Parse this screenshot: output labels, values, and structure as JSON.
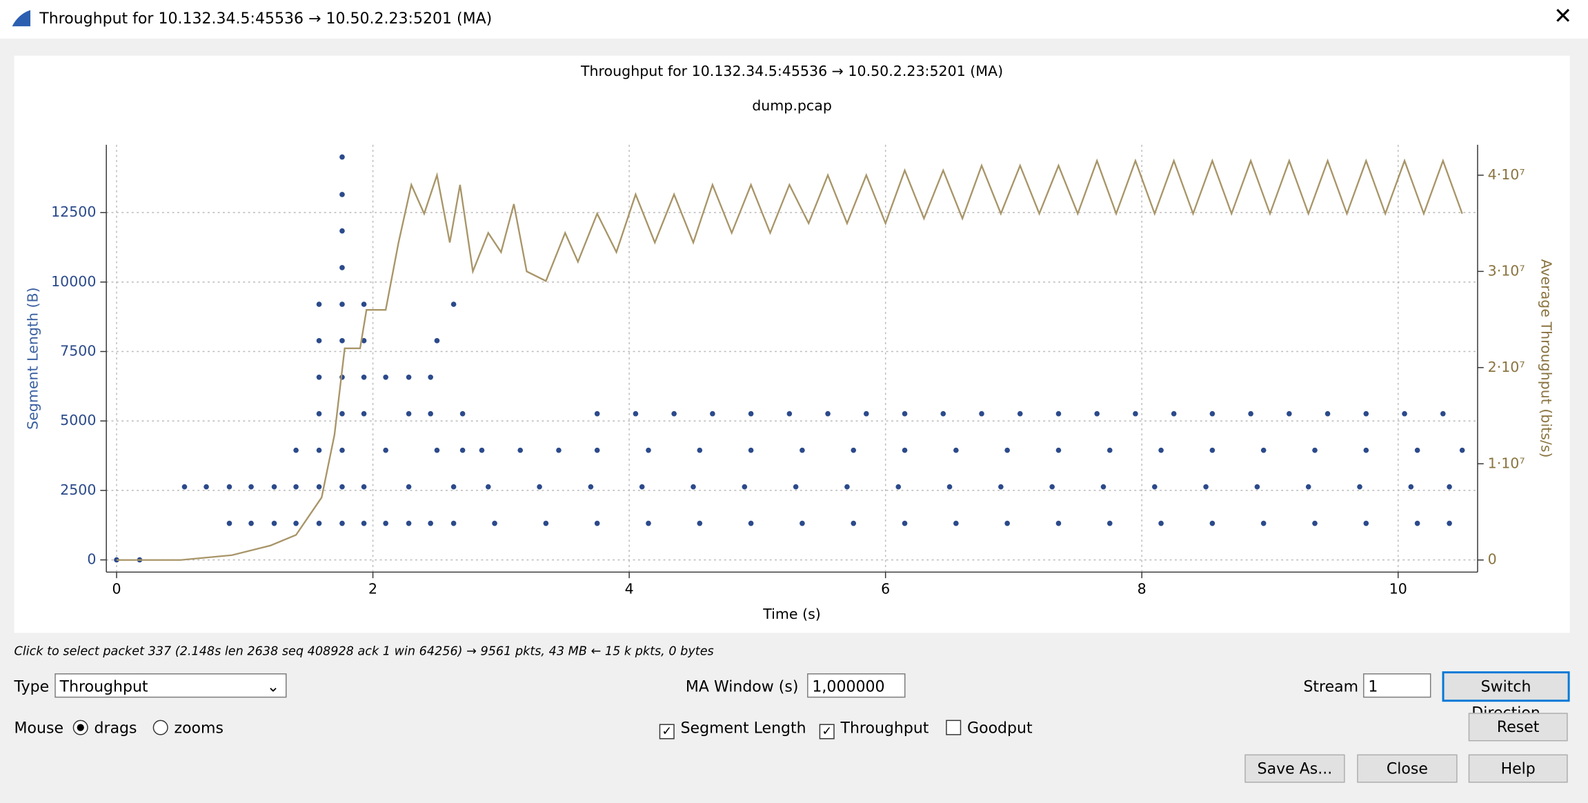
{
  "window_title": "Throughput for 10.132.34.5:45536 → 10.50.2.23:5201 (MA)",
  "chart_data": {
    "type": "scatter",
    "title": "Throughput for 10.132.34.5:45536 → 10.50.2.23:5201 (MA)",
    "subtitle": "dump.pcap",
    "xlabel": "Time (s)",
    "ylabel": "Segment Length (B)",
    "y2label": "Average Throughput (bits/s)",
    "xlim": [
      -0.08,
      10.62
    ],
    "xticks": [
      0,
      2,
      4,
      6,
      8,
      10
    ],
    "ylim": [
      -440,
      14940
    ],
    "yticks": [
      0,
      2500,
      5000,
      7500,
      10000,
      12500
    ],
    "y2lim": [
      -1260000,
      43160000
    ],
    "y2ticks": [
      0,
      {
        "value": 10000000,
        "label": "1·10⁷"
      },
      {
        "value": 20000000,
        "label": "2·10⁷"
      },
      {
        "value": 30000000,
        "label": "3·10⁷"
      },
      {
        "value": 40000000,
        "label": "4·10⁷"
      }
    ],
    "grid": true,
    "series": [
      {
        "name": "Segment Length",
        "color": "#2b4a8b",
        "x": [
          0,
          0.18,
          0.53,
          0.7,
          0.88,
          0.88,
          1.05,
          1.05,
          1.23,
          1.23,
          1.4,
          1.4,
          1.4,
          1.58,
          1.58,
          1.58,
          1.58,
          1.58,
          1.58,
          1.58,
          1.76,
          1.76,
          1.76,
          1.76,
          1.76,
          1.76,
          1.76,
          1.76,
          1.76,
          1.76,
          1.76,
          1.93,
          1.93,
          1.93,
          1.93,
          1.93,
          1.93,
          2.1,
          2.1,
          2.1,
          2.28,
          2.28,
          2.28,
          2.28,
          2.45,
          2.45,
          2.45,
          2.5,
          2.5,
          2.63,
          2.63,
          2.63,
          2.7,
          2.7,
          3.75,
          4.05,
          4.35,
          4.65,
          4.95,
          5.25,
          5.55,
          5.85,
          6.15,
          6.45,
          6.75,
          7.05,
          7.35,
          7.65,
          7.95,
          8.25,
          8.55,
          8.85,
          9.15,
          9.45,
          9.75,
          10.05,
          10.35,
          2.85,
          3.15,
          3.45,
          3.75,
          4.15,
          4.55,
          4.95,
          5.35,
          5.75,
          6.15,
          6.55,
          6.95,
          7.35,
          7.75,
          8.15,
          8.55,
          8.95,
          9.35,
          9.75,
          10.15,
          10.5,
          2.9,
          3.3,
          3.7,
          4.1,
          4.5,
          4.9,
          5.3,
          5.7,
          6.1,
          6.5,
          6.9,
          7.3,
          7.7,
          8.1,
          8.5,
          8.9,
          9.3,
          9.7,
          10.1,
          10.4,
          2.95,
          3.35,
          3.75,
          4.15,
          4.55,
          4.95,
          5.35,
          5.75,
          6.15,
          6.55,
          6.95,
          7.35,
          7.75,
          8.15,
          8.55,
          8.95,
          9.35,
          9.75,
          10.15,
          10.4
        ],
        "values": [
          0,
          0,
          2630,
          2630,
          2630,
          1315,
          1315,
          2630,
          2630,
          1315,
          2630,
          1315,
          3945,
          9200,
          7890,
          6575,
          5260,
          3945,
          2630,
          1315,
          14500,
          13150,
          11840,
          10520,
          9200,
          7890,
          6575,
          5260,
          3945,
          2630,
          1315,
          9200,
          7890,
          6575,
          5260,
          2630,
          1315,
          1315,
          3945,
          6575,
          6575,
          2630,
          1315,
          5260,
          6575,
          5260,
          1315,
          7890,
          3945,
          9200,
          1315,
          2630,
          3945,
          5260,
          5260,
          5260,
          5260,
          5260,
          5260,
          5260,
          5260,
          5260,
          5260,
          5260,
          5260,
          5260,
          5260,
          5260,
          5260,
          5260,
          5260,
          5260,
          5260,
          5260,
          5260,
          5260,
          5260,
          3945,
          3945,
          3945,
          3945,
          3945,
          3945,
          3945,
          3945,
          3945,
          3945,
          3945,
          3945,
          3945,
          3945,
          3945,
          3945,
          3945,
          3945,
          3945,
          3945,
          3945,
          2630,
          2630,
          2630,
          2630,
          2630,
          2630,
          2630,
          2630,
          2630,
          2630,
          2630,
          2630,
          2630,
          2630,
          2630,
          2630,
          2630,
          2630,
          2630,
          2630,
          1315,
          1315,
          1315,
          1315,
          1315,
          1315,
          1315,
          1315,
          1315,
          1315,
          1315,
          1315,
          1315,
          1315,
          1315,
          1315,
          1315,
          1315,
          1315,
          1315
        ]
      },
      {
        "name": "Throughput",
        "color": "#a89568",
        "axis": "y2",
        "x": [
          0,
          0.5,
          0.9,
          1.2,
          1.4,
          1.6,
          1.7,
          1.78,
          1.9,
          1.95,
          2.1,
          2.2,
          2.3,
          2.4,
          2.5,
          2.6,
          2.68,
          2.78,
          2.9,
          3.0,
          3.1,
          3.2,
          3.35,
          3.5,
          3.6,
          3.75,
          3.9,
          4.05,
          4.2,
          4.35,
          4.5,
          4.65,
          4.8,
          4.95,
          5.1,
          5.25,
          5.4,
          5.55,
          5.7,
          5.85,
          6.0,
          6.15,
          6.3,
          6.45,
          6.6,
          6.75,
          6.9,
          7.05,
          7.2,
          7.35,
          7.5,
          7.65,
          7.8,
          7.95,
          8.1,
          8.25,
          8.4,
          8.55,
          8.7,
          8.85,
          9.0,
          9.15,
          9.3,
          9.45,
          9.6,
          9.75,
          9.9,
          10.05,
          10.2,
          10.35,
          10.5
        ],
        "values": [
          0,
          0,
          500000,
          1500000,
          2600000,
          6500000,
          13000000,
          22000000,
          22000000,
          26000000,
          26000000,
          33000000,
          39000000,
          36000000,
          40000000,
          33000000,
          39000000,
          30000000,
          34000000,
          32000000,
          37000000,
          30000000,
          29000000,
          34000000,
          31000000,
          36000000,
          32000000,
          38000000,
          33000000,
          38000000,
          33000000,
          39000000,
          34000000,
          39000000,
          34000000,
          39000000,
          35000000,
          40000000,
          35000000,
          40000000,
          35000000,
          40500000,
          35500000,
          40500000,
          35500000,
          41000000,
          36000000,
          41000000,
          36000000,
          41000000,
          36000000,
          41500000,
          36000000,
          41500000,
          36000000,
          41500000,
          36000000,
          41500000,
          36000000,
          41500000,
          36000000,
          41500000,
          36000000,
          41500000,
          36000000,
          41500000,
          36000000,
          41500000,
          36000000,
          41500000,
          36000000
        ]
      }
    ]
  },
  "status": "Click to select packet 337 (2.148s len 2638 seq 408928 ack 1 win 64256) → 9561 pkts, 43 MB ← 15 k pkts, 0 bytes",
  "controls": {
    "type_label": "Type",
    "type_value": "Throughput",
    "ma_label": "MA Window (s)",
    "ma_value": "1,000000",
    "stream_label": "Stream",
    "stream_value": "1",
    "switch": "Switch Direction",
    "mouse_label": "Mouse",
    "drags": "drags",
    "zooms": "zooms",
    "goodput": "Goodput",
    "reset": "Reset",
    "save": "Save As...",
    "close": "Close",
    "help": "Help"
  }
}
